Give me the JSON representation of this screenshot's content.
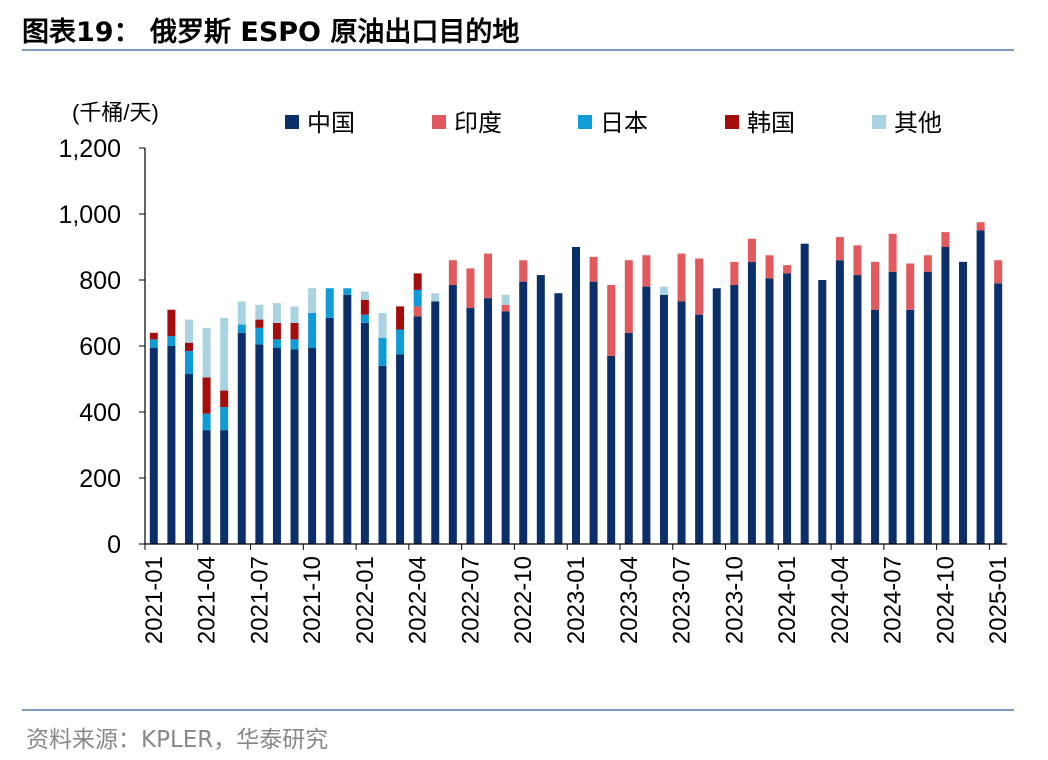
{
  "title": "图表19：  俄罗斯 ESPO 原油出口目的地",
  "source": "资料来源：KPLER，华泰研究",
  "colors": {
    "中国": "#0a2f69",
    "印度": "#e35a5e",
    "日本": "#0f9bd7",
    "韩国": "#a50d0d",
    "其他": "#a9d3e1",
    "rule": "#7f9cc4"
  },
  "chart_data": {
    "type": "bar",
    "stacked": true,
    "unit_label": "(千桶/天)",
    "ylim": [
      0,
      1200
    ],
    "yticks": [
      0,
      200,
      400,
      600,
      800,
      1000,
      1200
    ],
    "ytick_labels": [
      "0",
      "200",
      "400",
      "600",
      "800",
      "1,000",
      "1,200"
    ],
    "legend_position": "top",
    "grid": false,
    "xtick_labels": [
      "2021-01",
      "2021-04",
      "2021-07",
      "2021-10",
      "2022-01",
      "2022-04",
      "2022-07",
      "2022-10",
      "2023-01",
      "2023-04",
      "2023-07",
      "2023-10",
      "2024-01",
      "2024-04",
      "2024-07",
      "2024-10",
      "2025-01"
    ],
    "categories": [
      "2021-01",
      "2021-02",
      "2021-03",
      "2021-04",
      "2021-05",
      "2021-06",
      "2021-07",
      "2021-08",
      "2021-09",
      "2021-10",
      "2021-11",
      "2021-12",
      "2022-01",
      "2022-02",
      "2022-03",
      "2022-04",
      "2022-05",
      "2022-06",
      "2022-07",
      "2022-08",
      "2022-09",
      "2022-10",
      "2022-11",
      "2022-12",
      "2023-01",
      "2023-02",
      "2023-03",
      "2023-04",
      "2023-05",
      "2023-06",
      "2023-07",
      "2023-08",
      "2023-09",
      "2023-10",
      "2023-11",
      "2023-12",
      "2024-01",
      "2024-02",
      "2024-03",
      "2024-04",
      "2024-05",
      "2024-06",
      "2024-07",
      "2024-08",
      "2024-09",
      "2024-10",
      "2024-11",
      "2024-12",
      "2025-01"
    ],
    "series": [
      {
        "name": "中国",
        "values": [
          595,
          600,
          515,
          345,
          345,
          640,
          605,
          595,
          590,
          595,
          685,
          755,
          670,
          540,
          575,
          690,
          735,
          785,
          715,
          745,
          705,
          795,
          815,
          760,
          900,
          795,
          570,
          640,
          780,
          755,
          735,
          695,
          775,
          785,
          855,
          805,
          820,
          910,
          800,
          860,
          815,
          710,
          825,
          710,
          825,
          900,
          855,
          950,
          790
        ]
      },
      {
        "name": "印度",
        "values": [
          0,
          0,
          0,
          0,
          0,
          0,
          0,
          0,
          0,
          0,
          0,
          0,
          0,
          0,
          0,
          30,
          0,
          75,
          120,
          135,
          20,
          65,
          0,
          0,
          0,
          75,
          215,
          220,
          95,
          0,
          145,
          170,
          0,
          70,
          70,
          70,
          25,
          0,
          0,
          70,
          90,
          145,
          115,
          140,
          50,
          45,
          0,
          25,
          70
        ]
      },
      {
        "name": "日本",
        "values": [
          25,
          30,
          70,
          50,
          70,
          25,
          50,
          25,
          30,
          105,
          90,
          20,
          25,
          85,
          75,
          50,
          0,
          0,
          0,
          0,
          0,
          0,
          0,
          0,
          0,
          0,
          0,
          0,
          0,
          0,
          0,
          0,
          0,
          0,
          0,
          0,
          0,
          0,
          0,
          0,
          0,
          0,
          0,
          0,
          0,
          0,
          0,
          0,
          0
        ]
      },
      {
        "name": "韩国",
        "values": [
          20,
          80,
          25,
          110,
          50,
          0,
          25,
          50,
          50,
          0,
          0,
          0,
          45,
          0,
          70,
          50,
          0,
          0,
          0,
          0,
          0,
          0,
          0,
          0,
          0,
          0,
          0,
          0,
          0,
          0,
          0,
          0,
          0,
          0,
          0,
          0,
          0,
          0,
          0,
          0,
          0,
          0,
          0,
          0,
          0,
          0,
          0,
          0,
          0
        ]
      },
      {
        "name": "其他",
        "values": [
          0,
          0,
          70,
          150,
          220,
          70,
          45,
          60,
          50,
          75,
          0,
          0,
          25,
          75,
          0,
          0,
          25,
          0,
          0,
          0,
          30,
          0,
          0,
          0,
          0,
          0,
          0,
          0,
          0,
          25,
          0,
          0,
          0,
          0,
          0,
          0,
          0,
          0,
          0,
          0,
          0,
          0,
          0,
          0,
          0,
          0,
          0,
          0,
          0
        ]
      }
    ]
  }
}
